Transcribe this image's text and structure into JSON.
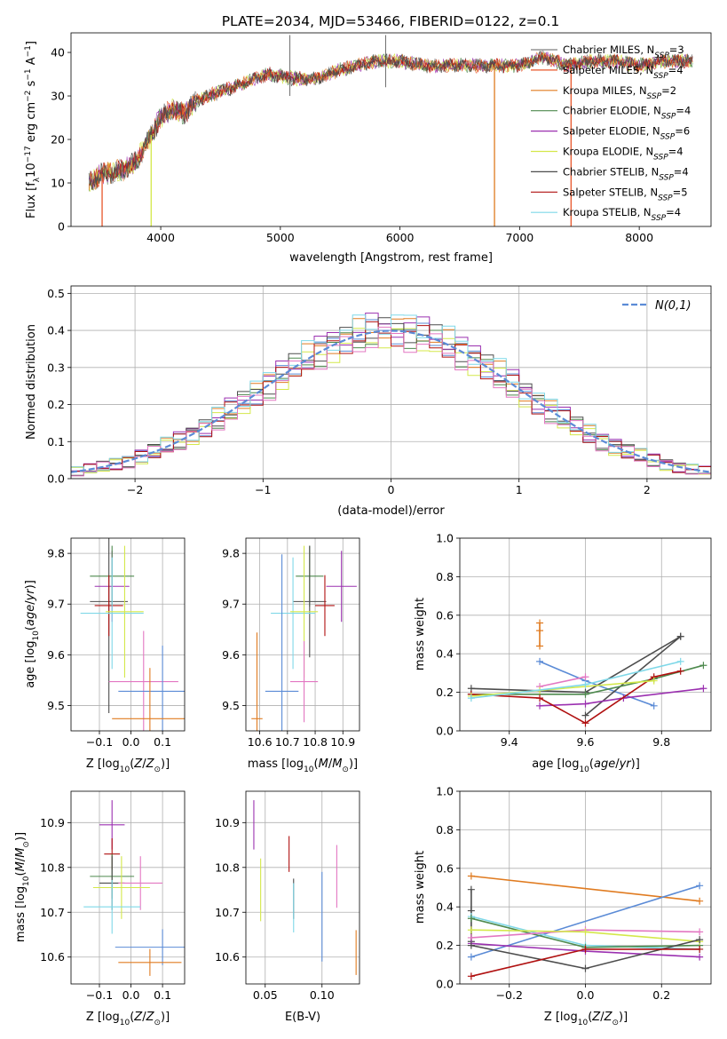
{
  "figure": {
    "title": "PLATE=2034, MJD=53466, FIBERID=0122, z=0.1"
  },
  "colors": {
    "Chabrier MILES": "#7f7f7f",
    "Salpeter MILES": "#ff7f0e",
    "Kroupa MILES": "#e07b20",
    "Chabrier ELODIE": "#4e8a4e",
    "Salpeter ELODIE": "#9b30b0",
    "Kroupa ELODIE": "#d4e84a",
    "Chabrier STELIB": "#4d4d4d",
    "Salpeter STELIB": "#b01010",
    "Kroupa STELIB": "#7fd8e8",
    "gaussian": "#5b8bd6",
    "extra_blue": "#5b8bd6",
    "extra_pink": "#e377c2"
  },
  "chart_data": [
    {
      "id": "spectrum",
      "type": "line",
      "title": "PLATE=2034, MJD=53466, FIBERID=0122, z=0.1",
      "xlabel": "wavelength [Angstrom, rest frame]",
      "ylabel": "Flux [f_λ10^-17 erg cm^-2 s^-1 A^-1]",
      "xlim": [
        3250,
        8600
      ],
      "ylim": [
        0,
        44.5
      ],
      "xticks": [
        4000,
        5000,
        6000,
        7000,
        8000
      ],
      "yticks": [
        0,
        10,
        20,
        30,
        40
      ],
      "legend": "upper-right",
      "series": [
        {
          "name": "Chabrier MILES, N_SSP=3",
          "color": "#7f7f7f"
        },
        {
          "name": "Salpeter MILES, N_SSP=4",
          "color": "#e8562a"
        },
        {
          "name": "Kroupa MILES, N_SSP=2",
          "color": "#e07b20"
        },
        {
          "name": "Chabrier ELODIE, N_SSP=4",
          "color": "#4e8a4e"
        },
        {
          "name": "Salpeter ELODIE, N_SSP=6",
          "color": "#9b30b0"
        },
        {
          "name": "Kroupa ELODIE, N_SSP=4",
          "color": "#d4e84a"
        },
        {
          "name": "Chabrier STELIB, N_SSP=4",
          "color": "#4d4d4d"
        },
        {
          "name": "Salpeter STELIB, N_SSP=5",
          "color": "#b01010"
        },
        {
          "name": "Kroupa STELIB, N_SSP=4",
          "color": "#7fd8e8"
        }
      ],
      "continuum": {
        "x": [
          3400,
          3500,
          3700,
          3800,
          3900,
          4000,
          4100,
          4200,
          4300,
          4500,
          4700,
          4900,
          5100,
          5300,
          5500,
          5800,
          6000,
          6200,
          6500,
          6800,
          7000,
          7200,
          7400,
          7600,
          7800,
          8000,
          8200,
          8400
        ],
        "y": [
          10,
          12,
          13,
          15,
          20,
          25,
          27,
          26,
          29,
          31,
          33,
          35,
          34,
          34,
          36,
          38,
          38,
          37,
          37,
          37,
          37,
          39,
          37,
          38,
          38,
          37,
          38,
          38
        ]
      },
      "cutoffs": [
        {
          "x": 3510,
          "color": "#e8562a"
        },
        {
          "x": 3920,
          "color": "#d4e84a"
        },
        {
          "x": 6790,
          "color": "#e07b20"
        },
        {
          "x": 7430,
          "color": "#e8562a"
        }
      ]
    },
    {
      "id": "residuals",
      "type": "histogram",
      "xlabel": "(data-model)/error",
      "ylabel": "Normed distribution",
      "xlim": [
        -2.5,
        2.5
      ],
      "ylim": [
        0,
        0.52
      ],
      "xticks": [
        -2,
        -1,
        0,
        1,
        2
      ],
      "yticks": [
        0.0,
        0.1,
        0.2,
        0.3,
        0.4,
        0.5
      ],
      "grid": true,
      "legend": "upper-right",
      "bin_width": 0.1,
      "gaussian_label": "N(0,1)",
      "series": [
        {
          "color": "#5b8bd6",
          "dy": 0.0
        },
        {
          "color": "#e07b20",
          "dy": 0.012
        },
        {
          "color": "#4e8a4e",
          "dy": -0.01
        },
        {
          "color": "#9b30b0",
          "dy": 0.018
        },
        {
          "color": "#d4e84a",
          "dy": -0.015
        },
        {
          "color": "#4d4d4d",
          "dy": 0.006
        },
        {
          "color": "#b01010",
          "dy": -0.006
        },
        {
          "color": "#7fd8e8",
          "dy": 0.022
        },
        {
          "color": "#e377c2",
          "dy": -0.02
        }
      ]
    },
    {
      "id": "age_vs_Z",
      "type": "scatter",
      "xlabel": "Z [log10(Z/Z⊙)]",
      "ylabel": "age  [log10(age/yr)]",
      "xlim": [
        -0.19,
        0.17
      ],
      "ylim": [
        9.45,
        9.83
      ],
      "xticks": [
        -0.1,
        0.0,
        0.1
      ],
      "xtick_labels": [
        "−0.1",
        "0.0",
        "0.1"
      ],
      "yticks": [
        9.5,
        9.6,
        9.7,
        9.8
      ],
      "grid": true,
      "points": [
        {
          "x": -0.06,
          "y": 9.735,
          "xe": 0.055,
          "ye": 0.07,
          "color": "#9b30b0"
        },
        {
          "x": -0.06,
          "y": 9.755,
          "xe": 0.07,
          "ye": 0.06,
          "color": "#4e8a4e"
        },
        {
          "x": -0.07,
          "y": 9.705,
          "xe": 0.06,
          "ye": 0.22,
          "color": "#4d4d4d"
        },
        {
          "x": -0.07,
          "y": 9.697,
          "xe": 0.045,
          "ye": 0.06,
          "color": "#b01010"
        },
        {
          "x": -0.06,
          "y": 9.682,
          "xe": 0.1,
          "ye": 0.11,
          "color": "#7fd8e8"
        },
        {
          "x": -0.02,
          "y": 9.685,
          "xe": 0.06,
          "ye": 0.13,
          "color": "#d4e84a"
        },
        {
          "x": 0.04,
          "y": 9.547,
          "xe": 0.11,
          "ye": 0.1,
          "color": "#e377c2"
        },
        {
          "x": 0.1,
          "y": 9.528,
          "xe": 0.14,
          "ye": 0.09,
          "color": "#5b8bd6"
        },
        {
          "x": 0.06,
          "y": 9.474,
          "xe": 0.12,
          "ye": 0.1,
          "color": "#e07b20"
        }
      ]
    },
    {
      "id": "age_vs_mass",
      "type": "scatter",
      "xlabel": "mass [log10(M/M⊙)]",
      "xlim": [
        10.55,
        10.96
      ],
      "ylim": [
        9.45,
        9.83
      ],
      "xticks": [
        10.6,
        10.7,
        10.8,
        10.9
      ],
      "yticks": [
        9.5,
        9.6,
        9.7,
        9.8
      ],
      "grid": true,
      "points": [
        {
          "x": 10.895,
          "y": 9.735,
          "xe": 0.055,
          "ye": 0.07,
          "color": "#9b30b0"
        },
        {
          "x": 10.78,
          "y": 9.755,
          "xe": 0.05,
          "ye": 0.06,
          "color": "#4e8a4e"
        },
        {
          "x": 10.78,
          "y": 9.705,
          "xe": 0.06,
          "ye": 0.11,
          "color": "#4d4d4d"
        },
        {
          "x": 10.835,
          "y": 9.697,
          "xe": 0.035,
          "ye": 0.06,
          "color": "#b01010"
        },
        {
          "x": 10.72,
          "y": 9.682,
          "xe": 0.08,
          "ye": 0.11,
          "color": "#7fd8e8"
        },
        {
          "x": 10.76,
          "y": 9.685,
          "xe": 0.05,
          "ye": 0.13,
          "color": "#d4e84a"
        },
        {
          "x": 10.76,
          "y": 9.547,
          "xe": 0.05,
          "ye": 0.08,
          "color": "#e377c2"
        },
        {
          "x": 10.68,
          "y": 9.528,
          "xe": 0.06,
          "ye": 0.27,
          "color": "#5b8bd6"
        },
        {
          "x": 10.59,
          "y": 9.474,
          "xe": 0.02,
          "ye": 0.17,
          "color": "#e07b20"
        }
      ]
    },
    {
      "id": "massweight_vs_age",
      "type": "line",
      "xlabel": "age  [log10(age/yr)]",
      "ylabel": "mass weight",
      "xlim": [
        9.27,
        9.93
      ],
      "ylim": [
        0,
        1.0
      ],
      "xticks": [
        9.4,
        9.6,
        9.8
      ],
      "yticks": [
        0.0,
        0.2,
        0.4,
        0.6,
        0.8,
        1.0
      ],
      "grid": true,
      "series": [
        {
          "color": "#e07b20",
          "x": [
            9.48,
            9.48,
            9.48
          ],
          "y": [
            0.44,
            0.52,
            0.56
          ]
        },
        {
          "color": "#5b8bd6",
          "x": [
            9.48,
            9.6,
            9.78
          ],
          "y": [
            0.36,
            0.26,
            0.13
          ]
        },
        {
          "color": "#e377c2",
          "x": [
            9.48,
            9.6
          ],
          "y": [
            0.23,
            0.28
          ]
        },
        {
          "color": "#4d4d4d",
          "x": [
            9.3,
            9.6,
            9.85
          ],
          "y": [
            0.22,
            0.2,
            0.49
          ]
        },
        {
          "color": "#4d4d4d",
          "x": [
            9.6,
            9.85
          ],
          "y": [
            0.08,
            0.49
          ]
        },
        {
          "color": "#4e8a4e",
          "x": [
            9.3,
            9.6,
            9.78,
            9.91
          ],
          "y": [
            0.19,
            0.19,
            0.27,
            0.34
          ]
        },
        {
          "color": "#9b30b0",
          "x": [
            9.48,
            9.6,
            9.7,
            9.91
          ],
          "y": [
            0.13,
            0.14,
            0.17,
            0.22
          ]
        },
        {
          "color": "#b01010",
          "x": [
            9.3,
            9.48,
            9.6,
            9.78,
            9.85
          ],
          "y": [
            0.19,
            0.17,
            0.04,
            0.28,
            0.31
          ]
        },
        {
          "color": "#d4e84a",
          "x": [
            9.3,
            9.48,
            9.78
          ],
          "y": [
            0.18,
            0.21,
            0.26
          ]
        },
        {
          "color": "#7fd8e8",
          "x": [
            9.3,
            9.6,
            9.85
          ],
          "y": [
            0.17,
            0.24,
            0.36
          ]
        }
      ]
    },
    {
      "id": "mass_vs_Z",
      "type": "scatter",
      "xlabel": "Z [log10(Z/Z⊙)]",
      "ylabel": "mass [log10(M/M⊙)]",
      "xlim": [
        -0.19,
        0.17
      ],
      "ylim": [
        10.54,
        10.97
      ],
      "xticks": [
        -0.1,
        0.0,
        0.1
      ],
      "xtick_labels": [
        "−0.1",
        "0.0",
        "0.1"
      ],
      "yticks": [
        10.6,
        10.7,
        10.8,
        10.9
      ],
      "grid": true,
      "points": [
        {
          "x": -0.06,
          "y": 10.895,
          "xe": 0.04,
          "ye": 0.055,
          "color": "#9b30b0"
        },
        {
          "x": -0.06,
          "y": 10.83,
          "xe": 0.025,
          "ye": 0.035,
          "color": "#b01010"
        },
        {
          "x": -0.06,
          "y": 10.78,
          "xe": 0.07,
          "ye": 0.05,
          "color": "#4e8a4e"
        },
        {
          "x": -0.06,
          "y": 10.765,
          "xe": 0.04,
          "ye": 0.06,
          "color": "#4d4d4d"
        },
        {
          "x": 0.03,
          "y": 10.765,
          "xe": 0.07,
          "ye": 0.06,
          "color": "#e377c2"
        },
        {
          "x": -0.03,
          "y": 10.755,
          "xe": 0.09,
          "ye": 0.07,
          "color": "#d4e84a"
        },
        {
          "x": -0.06,
          "y": 10.712,
          "xe": 0.09,
          "ye": 0.06,
          "color": "#7fd8e8"
        },
        {
          "x": 0.1,
          "y": 10.622,
          "xe": 0.15,
          "ye": 0.04,
          "color": "#5b8bd6"
        },
        {
          "x": 0.06,
          "y": 10.588,
          "xe": 0.1,
          "ye": 0.03,
          "color": "#e07b20"
        }
      ]
    },
    {
      "id": "mass_vs_ebv",
      "type": "scatter",
      "xlabel": "E(B-V)",
      "xlim": [
        0.033,
        0.133
      ],
      "ylim": [
        10.54,
        10.97
      ],
      "xticks": [
        0.05,
        0.1
      ],
      "xtick_labels": [
        "0.05",
        "0.10"
      ],
      "yticks": [
        10.6,
        10.7,
        10.8,
        10.9
      ],
      "grid": true,
      "points": [
        {
          "x": 0.04,
          "y": 10.895,
          "xe": 0,
          "ye": 0.055,
          "color": "#9b30b0"
        },
        {
          "x": 0.071,
          "y": 10.83,
          "xe": 0,
          "ye": 0.04,
          "color": "#b01010"
        },
        {
          "x": 0.046,
          "y": 10.75,
          "xe": 0,
          "ye": 0.07,
          "color": "#d4e84a"
        },
        {
          "x": 0.075,
          "y": 10.73,
          "xe": 0,
          "ye": 0.045,
          "color": "#4d4d4d"
        },
        {
          "x": 0.075,
          "y": 10.71,
          "xe": 0,
          "ye": 0.055,
          "color": "#7fd8e8"
        },
        {
          "x": 0.113,
          "y": 10.78,
          "xe": 0,
          "ye": 0.07,
          "color": "#e377c2"
        },
        {
          "x": 0.1,
          "y": 10.69,
          "xe": 0,
          "ye": 0.1,
          "color": "#5b8bd6"
        },
        {
          "x": 0.13,
          "y": 10.61,
          "xe": 0,
          "ye": 0.05,
          "color": "#e07b20"
        }
      ]
    },
    {
      "id": "massweight_vs_Z",
      "type": "line",
      "xlabel": "Z [log10(Z/Z⊙)]",
      "ylabel": "mass weight",
      "xlim": [
        -0.33,
        0.33
      ],
      "ylim": [
        0,
        1.0
      ],
      "xticks": [
        -0.2,
        0.0,
        0.2
      ],
      "xtick_labels": [
        "−0.2",
        "0.0",
        "0.2"
      ],
      "yticks": [
        0.0,
        0.2,
        0.4,
        0.6,
        0.8,
        1.0
      ],
      "grid": true,
      "series": [
        {
          "color": "#e07b20",
          "x": [
            -0.3,
            0.3
          ],
          "y": [
            0.56,
            0.43
          ]
        },
        {
          "color": "#5b8bd6",
          "x": [
            -0.3,
            0.3
          ],
          "y": [
            0.14,
            0.51
          ]
        },
        {
          "color": "#4d4d4d",
          "x": [
            -0.3,
            -0.3,
            -0.3
          ],
          "y": [
            0.22,
            0.38,
            0.49
          ]
        },
        {
          "color": "#7fd8e8",
          "x": [
            -0.3,
            0.0,
            0.3
          ],
          "y": [
            0.35,
            0.2,
            0.18
          ]
        },
        {
          "color": "#4e8a4e",
          "x": [
            -0.3,
            0.0,
            0.3
          ],
          "y": [
            0.34,
            0.19,
            0.2
          ]
        },
        {
          "color": "#e377c2",
          "x": [
            -0.3,
            0.0,
            0.3
          ],
          "y": [
            0.24,
            0.28,
            0.27
          ]
        },
        {
          "color": "#d4e84a",
          "x": [
            -0.3,
            0.0,
            0.3
          ],
          "y": [
            0.28,
            0.27,
            0.22
          ]
        },
        {
          "color": "#9b30b0",
          "x": [
            -0.3,
            0.0,
            0.3
          ],
          "y": [
            0.21,
            0.17,
            0.14
          ]
        },
        {
          "color": "#4d4d4d",
          "x": [
            -0.3,
            0.0,
            0.3
          ],
          "y": [
            0.2,
            0.08,
            0.23
          ]
        },
        {
          "color": "#b01010",
          "x": [
            -0.3,
            0.0,
            0.3
          ],
          "y": [
            0.04,
            0.18,
            0.18
          ]
        }
      ]
    }
  ]
}
